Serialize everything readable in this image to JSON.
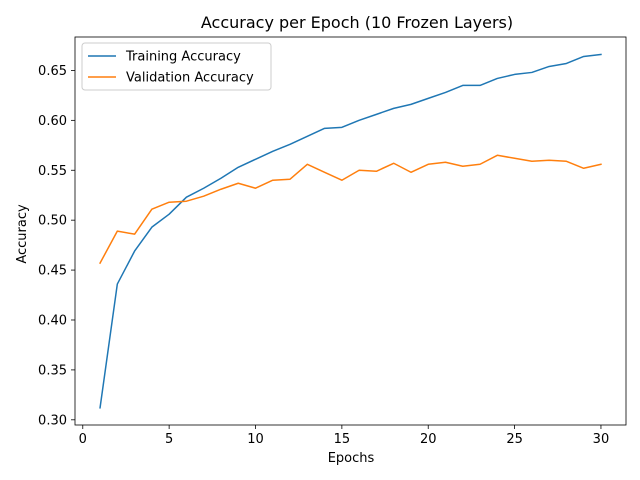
{
  "chart_data": {
    "type": "line",
    "title": "Accuracy per Epoch (10 Frozen Layers)",
    "xlabel": "Epochs",
    "ylabel": "Accuracy",
    "xlim": [
      -0.45,
      31.45
    ],
    "ylim": [
      0.2948,
      0.6835
    ],
    "xticks": [
      0,
      5,
      10,
      15,
      20,
      25,
      30
    ],
    "yticks": [
      0.3,
      0.35,
      0.4,
      0.45,
      0.5,
      0.55,
      0.6,
      0.65
    ],
    "xtick_labels": [
      "0",
      "5",
      "10",
      "15",
      "20",
      "25",
      "30"
    ],
    "ytick_labels": [
      "0.30",
      "0.35",
      "0.40",
      "0.45",
      "0.50",
      "0.55",
      "0.60",
      "0.65"
    ],
    "grid": false,
    "legend_position": "top-left",
    "x": [
      1,
      2,
      3,
      4,
      5,
      6,
      7,
      8,
      9,
      10,
      11,
      12,
      13,
      14,
      15,
      16,
      17,
      18,
      19,
      20,
      21,
      22,
      23,
      24,
      25,
      26,
      27,
      28,
      29,
      30
    ],
    "series": [
      {
        "name": "Training Accuracy",
        "color": "#1f77b4",
        "values": [
          0.312,
          0.436,
          0.469,
          0.493,
          0.506,
          0.523,
          0.532,
          0.542,
          0.553,
          0.561,
          0.569,
          0.576,
          0.584,
          0.592,
          0.593,
          0.6,
          0.606,
          0.612,
          0.616,
          0.622,
          0.628,
          0.635,
          0.635,
          0.642,
          0.646,
          0.648,
          0.654,
          0.657,
          0.664,
          0.666
        ]
      },
      {
        "name": "Validation Accuracy",
        "color": "#ff7f0e",
        "values": [
          0.457,
          0.489,
          0.486,
          0.511,
          0.518,
          0.519,
          0.524,
          0.531,
          0.537,
          0.532,
          0.54,
          0.541,
          0.556,
          0.548,
          0.54,
          0.55,
          0.549,
          0.557,
          0.548,
          0.556,
          0.558,
          0.554,
          0.556,
          0.565,
          0.562,
          0.559,
          0.56,
          0.559,
          0.552,
          0.556
        ]
      }
    ]
  }
}
